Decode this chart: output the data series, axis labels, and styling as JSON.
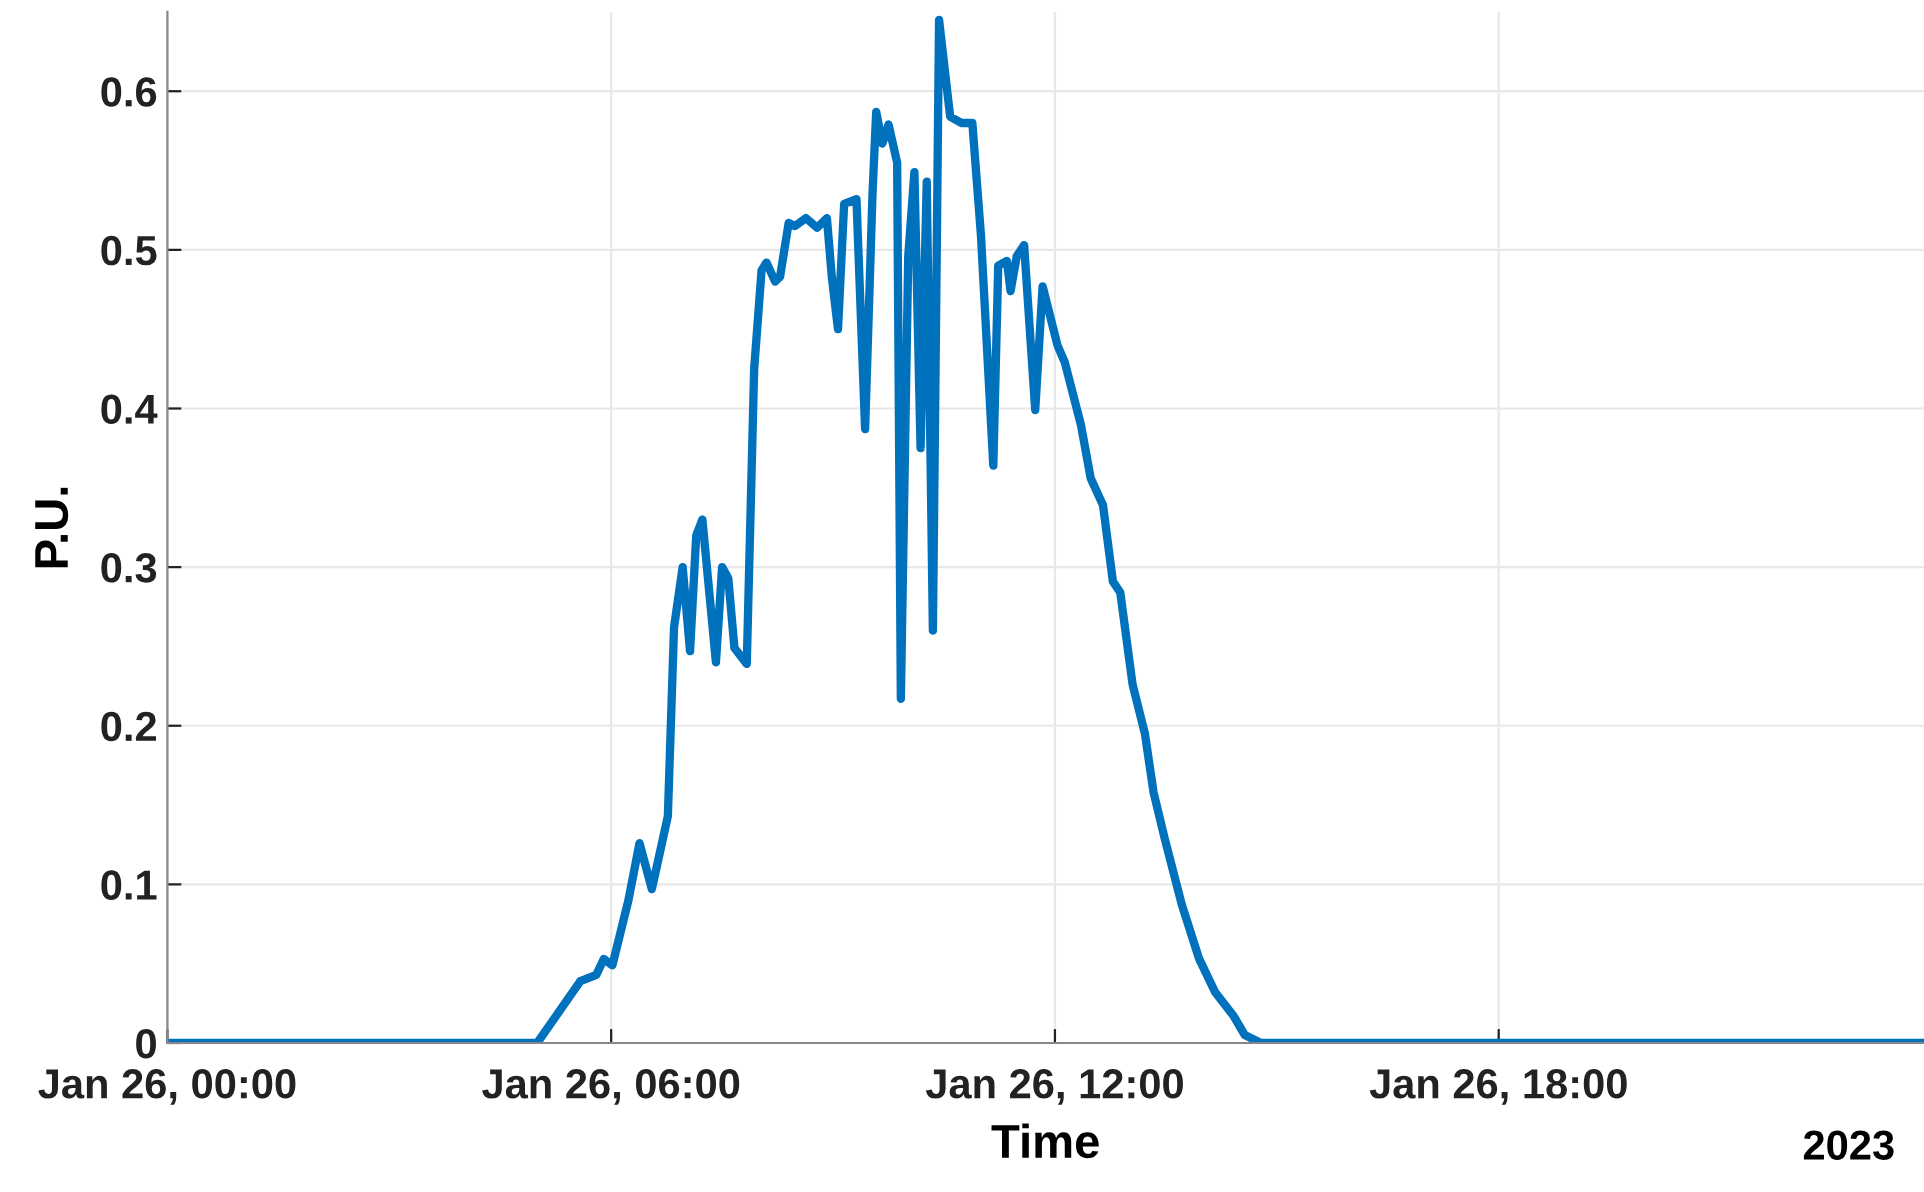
{
  "chart_data": {
    "type": "line",
    "xlabel": "Time",
    "ylabel": "P.U.",
    "annotations": [
      "2023"
    ],
    "x": [
      "2023-01-26T00:00",
      "2023-01-26T05:00",
      "2023-01-26T05:35",
      "2023-01-26T05:48",
      "2023-01-26T05:54",
      "2023-01-26T06:01",
      "2023-01-26T06:14",
      "2023-01-26T06:23",
      "2023-01-26T06:33",
      "2023-01-26T06:46",
      "2023-01-26T06:51",
      "2023-01-26T06:58",
      "2023-01-26T07:04",
      "2023-01-26T07:09",
      "2023-01-26T07:14",
      "2023-01-26T07:25",
      "2023-01-26T07:30",
      "2023-01-26T07:35",
      "2023-01-26T07:40",
      "2023-01-26T07:50",
      "2023-01-26T07:56",
      "2023-01-26T08:02",
      "2023-01-26T08:06",
      "2023-01-26T08:13",
      "2023-01-26T08:17",
      "2023-01-26T08:24",
      "2023-01-26T08:29",
      "2023-01-26T08:38",
      "2023-01-26T08:47",
      "2023-01-26T08:55",
      "2023-01-26T08:59",
      "2023-01-26T09:04",
      "2023-01-26T09:09",
      "2023-01-26T09:19",
      "2023-01-26T09:26",
      "2023-01-26T09:32",
      "2023-01-26T09:35",
      "2023-01-26T09:40",
      "2023-01-26T09:45",
      "2023-01-26T09:52",
      "2023-01-26T09:55",
      "2023-01-26T10:01",
      "2023-01-26T10:06",
      "2023-01-26T10:11",
      "2023-01-26T10:16",
      "2023-01-26T10:21",
      "2023-01-26T10:26",
      "2023-01-26T10:35",
      "2023-01-26T10:44",
      "2023-01-26T10:53",
      "2023-01-26T11:00",
      "2023-01-26T11:10",
      "2023-01-26T11:14",
      "2023-01-26T11:21",
      "2023-01-26T11:24",
      "2023-01-26T11:29",
      "2023-01-26T11:35",
      "2023-01-26T11:44",
      "2023-01-26T11:50",
      "2023-01-26T12:02",
      "2023-01-26T12:08",
      "2023-01-26T12:21",
      "2023-01-26T12:29",
      "2023-01-26T12:39",
      "2023-01-26T12:47",
      "2023-01-26T12:53",
      "2023-01-26T13:03",
      "2023-01-26T13:13",
      "2023-01-26T13:20",
      "2023-01-26T13:29",
      "2023-01-26T13:43",
      "2023-01-26T13:57",
      "2023-01-26T14:10",
      "2023-01-26T14:25",
      "2023-01-26T14:34",
      "2023-01-26T14:47",
      "2023-01-26T23:45"
    ],
    "series": [
      {
        "color": "#0072bd",
        "values": [
          0,
          0,
          0.039,
          0.043,
          0.053,
          0.049,
          0.09,
          0.126,
          0.097,
          0.143,
          0.262,
          0.3,
          0.247,
          0.32,
          0.33,
          0.24,
          0.3,
          0.293,
          0.249,
          0.239,
          0.425,
          0.487,
          0.492,
          0.48,
          0.483,
          0.517,
          0.515,
          0.52,
          0.514,
          0.52,
          0.483,
          0.45,
          0.529,
          0.532,
          0.387,
          0.535,
          0.587,
          0.567,
          0.579,
          0.555,
          0.217,
          0.496,
          0.549,
          0.375,
          0.543,
          0.26,
          0.645,
          0.584,
          0.58,
          0.58,
          0.509,
          0.364,
          0.49,
          0.493,
          0.474,
          0.496,
          0.503,
          0.399,
          0.477,
          0.44,
          0.429,
          0.39,
          0.356,
          0.339,
          0.291,
          0.284,
          0.226,
          0.195,
          0.158,
          0.129,
          0.087,
          0.053,
          0.032,
          0.017,
          0.005,
          0,
          0
        ]
      }
    ],
    "xlim": [
      "2023-01-26T00:00",
      "2023-01-26T23:45"
    ],
    "ylim": [
      0,
      0.65
    ],
    "xticks": [
      {
        "value": "2023-01-26T00:00",
        "label": "Jan 26, 00:00"
      },
      {
        "value": "2023-01-26T06:00",
        "label": "Jan 26, 06:00"
      },
      {
        "value": "2023-01-26T12:00",
        "label": "Jan 26, 12:00"
      },
      {
        "value": "2023-01-26T18:00",
        "label": "Jan 26, 18:00"
      }
    ],
    "yticks": [
      0,
      0.1,
      0.2,
      0.3,
      0.4,
      0.5,
      0.6
    ],
    "grid": true,
    "legend": false,
    "marker": "none",
    "line_style": "solid"
  }
}
